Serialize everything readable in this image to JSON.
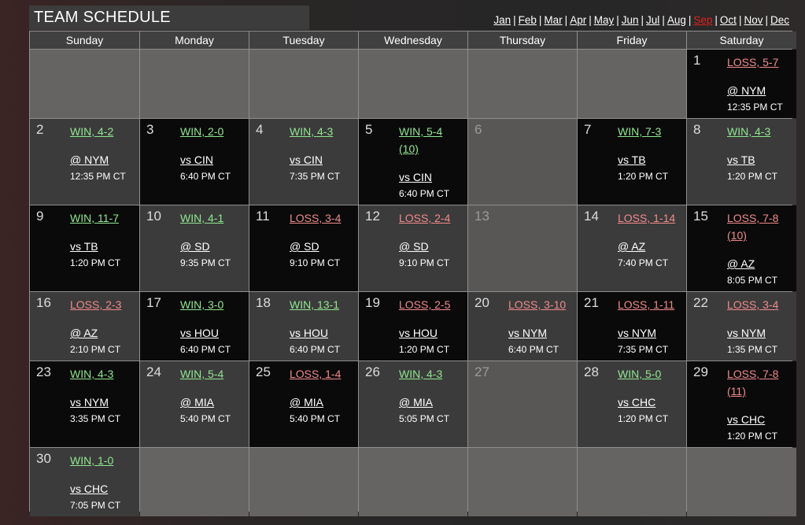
{
  "title": "TEAM SCHEDULE",
  "months": [
    {
      "label": "Jan",
      "current": false
    },
    {
      "label": "Feb",
      "current": false
    },
    {
      "label": "Mar",
      "current": false
    },
    {
      "label": "Apr",
      "current": false
    },
    {
      "label": "May",
      "current": false
    },
    {
      "label": "Jun",
      "current": false
    },
    {
      "label": "Jul",
      "current": false
    },
    {
      "label": "Aug",
      "current": false
    },
    {
      "label": "Sep",
      "current": true
    },
    {
      "label": "Oct",
      "current": false
    },
    {
      "label": "Nov",
      "current": false
    },
    {
      "label": "Dec",
      "current": false
    }
  ],
  "weekdays": [
    "Sunday",
    "Monday",
    "Tuesday",
    "Wednesday",
    "Thursday",
    "Friday",
    "Saturday"
  ],
  "colors": {
    "win": "#8fe88f",
    "loss": "#f08a8a",
    "current_month": "#e32222"
  },
  "weeks": [
    [
      null,
      null,
      null,
      null,
      null,
      null,
      {
        "day": "1",
        "result": "LOSS, 5-7",
        "opponent": "@ NYM",
        "time": "12:35 PM CT"
      }
    ],
    [
      {
        "day": "2",
        "result": "WIN, 4-2",
        "opponent": "@ NYM",
        "time": "12:35 PM CT"
      },
      {
        "day": "3",
        "result": "WIN, 2-0",
        "opponent": "vs CIN",
        "time": "6:40 PM CT"
      },
      {
        "day": "4",
        "result": "WIN, 4-3",
        "opponent": "vs CIN",
        "time": "7:35 PM CT"
      },
      {
        "day": "5",
        "result": "WIN, 5-4 (10)",
        "opponent": "vs CIN",
        "time": "6:40 PM CT"
      },
      {
        "day": "6"
      },
      {
        "day": "7",
        "result": "WIN, 7-3",
        "opponent": "vs TB",
        "time": "1:20 PM CT"
      },
      {
        "day": "8",
        "result": "WIN, 4-3",
        "opponent": "vs TB",
        "time": "1:20 PM CT"
      }
    ],
    [
      {
        "day": "9",
        "result": "WIN, 11-7",
        "opponent": "vs TB",
        "time": "1:20 PM CT"
      },
      {
        "day": "10",
        "result": "WIN, 4-1",
        "opponent": "@ SD",
        "time": "9:35 PM CT"
      },
      {
        "day": "11",
        "result": "LOSS, 3-4",
        "opponent": "@ SD",
        "time": "9:10 PM CT"
      },
      {
        "day": "12",
        "result": "LOSS, 2-4",
        "opponent": "@ SD",
        "time": "9:10 PM CT"
      },
      {
        "day": "13"
      },
      {
        "day": "14",
        "result": "LOSS, 1-14",
        "opponent": "@ AZ",
        "time": "7:40 PM CT"
      },
      {
        "day": "15",
        "result": "LOSS, 7-8 (10)",
        "opponent": "@ AZ",
        "time": "8:05 PM CT"
      }
    ],
    [
      {
        "day": "16",
        "result": "LOSS, 2-3",
        "opponent": "@ AZ",
        "time": "2:10 PM CT"
      },
      {
        "day": "17",
        "result": "WIN, 3-0",
        "opponent": "vs HOU",
        "time": "6:40 PM CT"
      },
      {
        "day": "18",
        "result": "WIN, 13-1",
        "opponent": "vs HOU",
        "time": "6:40 PM CT"
      },
      {
        "day": "19",
        "result": "LOSS, 2-5",
        "opponent": "vs HOU",
        "time": "1:20 PM CT"
      },
      {
        "day": "20",
        "result": "LOSS, 3-10",
        "opponent": "vs NYM",
        "time": "6:40 PM CT"
      },
      {
        "day": "21",
        "result": "LOSS, 1-11",
        "opponent": "vs NYM",
        "time": "7:35 PM CT"
      },
      {
        "day": "22",
        "result": "LOSS, 3-4",
        "opponent": "vs NYM",
        "time": "1:35 PM CT"
      }
    ],
    [
      {
        "day": "23",
        "result": "WIN, 4-3",
        "opponent": "vs NYM",
        "time": "3:35 PM CT"
      },
      {
        "day": "24",
        "result": "WIN, 5-4",
        "opponent": "@ MIA",
        "time": "5:40 PM CT"
      },
      {
        "day": "25",
        "result": "LOSS, 1-4",
        "opponent": "@ MIA",
        "time": "5:40 PM CT"
      },
      {
        "day": "26",
        "result": "WIN, 4-3",
        "opponent": "@ MIA",
        "time": "5:05 PM CT"
      },
      {
        "day": "27"
      },
      {
        "day": "28",
        "result": "WIN, 5-0",
        "opponent": "vs CHC",
        "time": "1:20 PM CT"
      },
      {
        "day": "29",
        "result": "LOSS, 7-8 (11)",
        "opponent": "vs CHC",
        "time": "1:20 PM CT"
      }
    ],
    [
      {
        "day": "30",
        "result": "WIN, 1-0",
        "opponent": "vs CHC",
        "time": "7:05 PM CT"
      },
      null,
      null,
      null,
      null,
      null,
      null
    ]
  ]
}
